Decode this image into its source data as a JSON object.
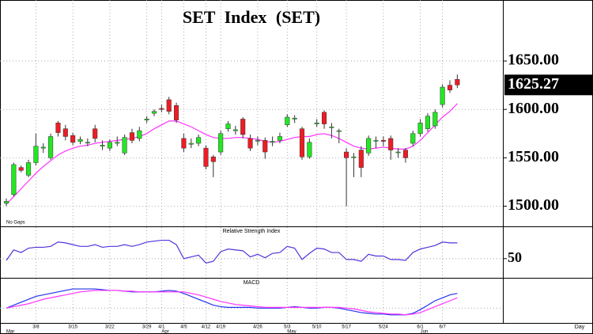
{
  "chart_data": [
    {
      "type": "candlestick",
      "title": "SET Index (SET)",
      "annotation": "No Gaps",
      "xlabel": "Day",
      "categories": [
        null,
        null,
        null,
        null,
        "3/8",
        null,
        null,
        null,
        null,
        "3/15",
        null,
        null,
        null,
        null,
        "3/22",
        null,
        null,
        null,
        null,
        "3/29",
        null,
        "4/1",
        null,
        null,
        "4/5",
        null,
        null,
        "4/12",
        null,
        "4/19",
        null,
        null,
        null,
        null,
        "4/26",
        null,
        null,
        null,
        "5/3",
        null,
        null,
        null,
        "5/10",
        null,
        null,
        null,
        "5/17",
        null,
        null,
        null,
        null,
        "5/24",
        null,
        null,
        null,
        null,
        "6/1",
        null,
        null,
        "6/7",
        null,
        null
      ],
      "months": [
        "Mar",
        null,
        null,
        null,
        null,
        null,
        null,
        null,
        null,
        null,
        null,
        null,
        null,
        null,
        null,
        null,
        null,
        null,
        null,
        null,
        null,
        "Apr",
        null,
        null,
        null,
        null,
        null,
        null,
        null,
        null,
        null,
        null,
        null,
        null,
        null,
        null,
        null,
        null,
        "May",
        null,
        null,
        null,
        null,
        null,
        null,
        null,
        null,
        null,
        null,
        null,
        null,
        null,
        null,
        null,
        null,
        null,
        "Jun",
        null,
        null,
        null,
        null,
        null
      ],
      "open": [
        1503,
        1512,
        1540,
        1532,
        1545,
        1560,
        1550,
        1586,
        1580,
        1573,
        1567,
        1566,
        1580,
        1562,
        1560,
        1565,
        1555,
        1576,
        1570,
        1589,
        1596,
        1601,
        1610,
        1604,
        1570,
        1564,
        1565,
        1560,
        1551,
        1556,
        1580,
        1578,
        1590,
        1570,
        1568,
        1568,
        1566,
        1568,
        1584,
        1590,
        1580,
        1551,
        1585,
        1597,
        1582,
        1578,
        1556,
        1551,
        1558,
        1555,
        1568,
        1568,
        1570,
        1556,
        1558,
        1565,
        1575,
        1580,
        1583,
        1605,
        1625,
        1631
      ],
      "high": [
        1508,
        1545,
        1542,
        1548,
        1575,
        1565,
        1575,
        1588,
        1584,
        1576,
        1572,
        1570,
        1584,
        1568,
        1569,
        1572,
        1574,
        1580,
        1582,
        1593,
        1600,
        1605,
        1613,
        1607,
        1575,
        1570,
        1574,
        1563,
        1553,
        1578,
        1588,
        1583,
        1592,
        1574,
        1572,
        1571,
        1572,
        1576,
        1595,
        1594,
        1582,
        1570,
        1590,
        1599,
        1586,
        1580,
        1560,
        1555,
        1562,
        1573,
        1572,
        1572,
        1573,
        1560,
        1560,
        1578,
        1590,
        1596,
        1600,
        1626,
        1630,
        1636
      ],
      "low": [
        1500,
        1510,
        1535,
        1530,
        1542,
        1555,
        1548,
        1572,
        1568,
        1563,
        1564,
        1562,
        1566,
        1558,
        1557,
        1562,
        1553,
        1565,
        1567,
        1586,
        1593,
        1597,
        1595,
        1586,
        1556,
        1560,
        1562,
        1538,
        1530,
        1553,
        1577,
        1574,
        1570,
        1557,
        1563,
        1549,
        1562,
        1565,
        1582,
        1586,
        1548,
        1549,
        1582,
        1580,
        1570,
        1565,
        1500,
        1530,
        1530,
        1552,
        1560,
        1562,
        1548,
        1550,
        1545,
        1562,
        1572,
        1577,
        1580,
        1602,
        1617,
        1622
      ],
      "close": [
        1505,
        1543,
        1537,
        1545,
        1562,
        1561,
        1572,
        1576,
        1572,
        1566,
        1569,
        1566,
        1570,
        1563,
        1566,
        1566,
        1571,
        1568,
        1578,
        1590,
        1598,
        1600,
        1598,
        1589,
        1560,
        1565,
        1571,
        1541,
        1546,
        1575,
        1585,
        1579,
        1574,
        1560,
        1568,
        1556,
        1567,
        1572,
        1592,
        1591,
        1551,
        1566,
        1586,
        1585,
        1582,
        1578,
        1550,
        1551,
        1540,
        1570,
        1568,
        1567,
        1558,
        1556,
        1550,
        1575,
        1586,
        1593,
        1597,
        1623,
        1620,
        1625.27
      ],
      "up_color": "#22e822",
      "down_color": "#ee1c25",
      "ma": {
        "color": "#ff33ff",
        "values": [
          1502,
          1510,
          1518,
          1526,
          1534,
          1541,
          1547,
          1553,
          1557,
          1560,
          1562,
          1563,
          1565,
          1566,
          1567,
          1568,
          1569,
          1570,
          1572,
          1575,
          1580,
          1584,
          1588,
          1588,
          1585,
          1582,
          1578,
          1574,
          1571,
          1570,
          1570,
          1571,
          1571,
          1570,
          1569,
          1567,
          1566,
          1567,
          1569,
          1571,
          1572,
          1572,
          1574,
          1575,
          1573,
          1570,
          1566,
          1562,
          1560,
          1559,
          1560,
          1561,
          1560,
          1559,
          1559,
          1562,
          1568,
          1576,
          1584,
          1592,
          1598,
          1606
        ]
      },
      "ylim": [
        1480,
        1713
      ],
      "yticks": [
        {
          "value": 1500,
          "label": "1500.00"
        },
        {
          "value": 1550,
          "label": "1550.00"
        },
        {
          "value": 1600,
          "label": "1600.00"
        },
        {
          "value": 1650,
          "label": "1650.00"
        }
      ],
      "grid": true
    },
    {
      "type": "line",
      "title": "Relative Strength Index",
      "series": [
        {
          "color": "#5533dd",
          "values": [
            48,
            60,
            57,
            62,
            63,
            63,
            64,
            69,
            68,
            66,
            64,
            64,
            66,
            63,
            64,
            64,
            66,
            64,
            66,
            69,
            70,
            71,
            71,
            66,
            50,
            52,
            54,
            45,
            47,
            58,
            61,
            60,
            59,
            52,
            55,
            51,
            56,
            57,
            64,
            62,
            49,
            56,
            62,
            61,
            57,
            57,
            49,
            49,
            47,
            55,
            53,
            53,
            49,
            49,
            48,
            57,
            61,
            63,
            65,
            69,
            68,
            68
          ]
        }
      ],
      "ylim": [
        29,
        86
      ],
      "yticks": [
        50
      ],
      "grid": true
    },
    {
      "type": "line",
      "title": "MACD",
      "series": [
        {
          "color": "#2233ee",
          "values": [
            0,
            2,
            4,
            6,
            8,
            9,
            10,
            11,
            12,
            13,
            13,
            13,
            13,
            12.5,
            12,
            12,
            11.5,
            11,
            11,
            11,
            11,
            11.5,
            12,
            11.5,
            10,
            8,
            6,
            4,
            2,
            1,
            0.5,
            0.5,
            0.5,
            0.5,
            0,
            0,
            0,
            0,
            0.5,
            1,
            0.5,
            0,
            0,
            0.5,
            0.5,
            0,
            -1,
            -2,
            -3,
            -3.5,
            -4,
            -4,
            -4.5,
            -4.5,
            -4.5,
            -3.5,
            -1,
            2,
            5,
            7,
            9,
            10
          ]
        },
        {
          "color": "#ff33ff",
          "values": [
            0,
            1,
            2,
            3,
            4.5,
            6,
            7,
            8,
            9,
            10,
            11,
            11.5,
            12,
            12,
            12,
            12,
            11.5,
            11.5,
            11,
            11,
            11,
            11,
            11,
            11,
            11,
            10,
            9,
            7.5,
            6,
            4.5,
            3.5,
            2.5,
            2,
            1.5,
            1,
            0.5,
            0.5,
            0.5,
            0.5,
            0.5,
            0.5,
            0.5,
            0.5,
            0.5,
            0.5,
            0.5,
            0,
            -0.5,
            -1.5,
            -2.5,
            -3,
            -3.5,
            -4,
            -4,
            -4.5,
            -4,
            -3,
            -1,
            1,
            3,
            5,
            7
          ]
        }
      ],
      "ylim": [
        -10,
        20
      ],
      "yticks": [],
      "grid": true
    }
  ]
}
